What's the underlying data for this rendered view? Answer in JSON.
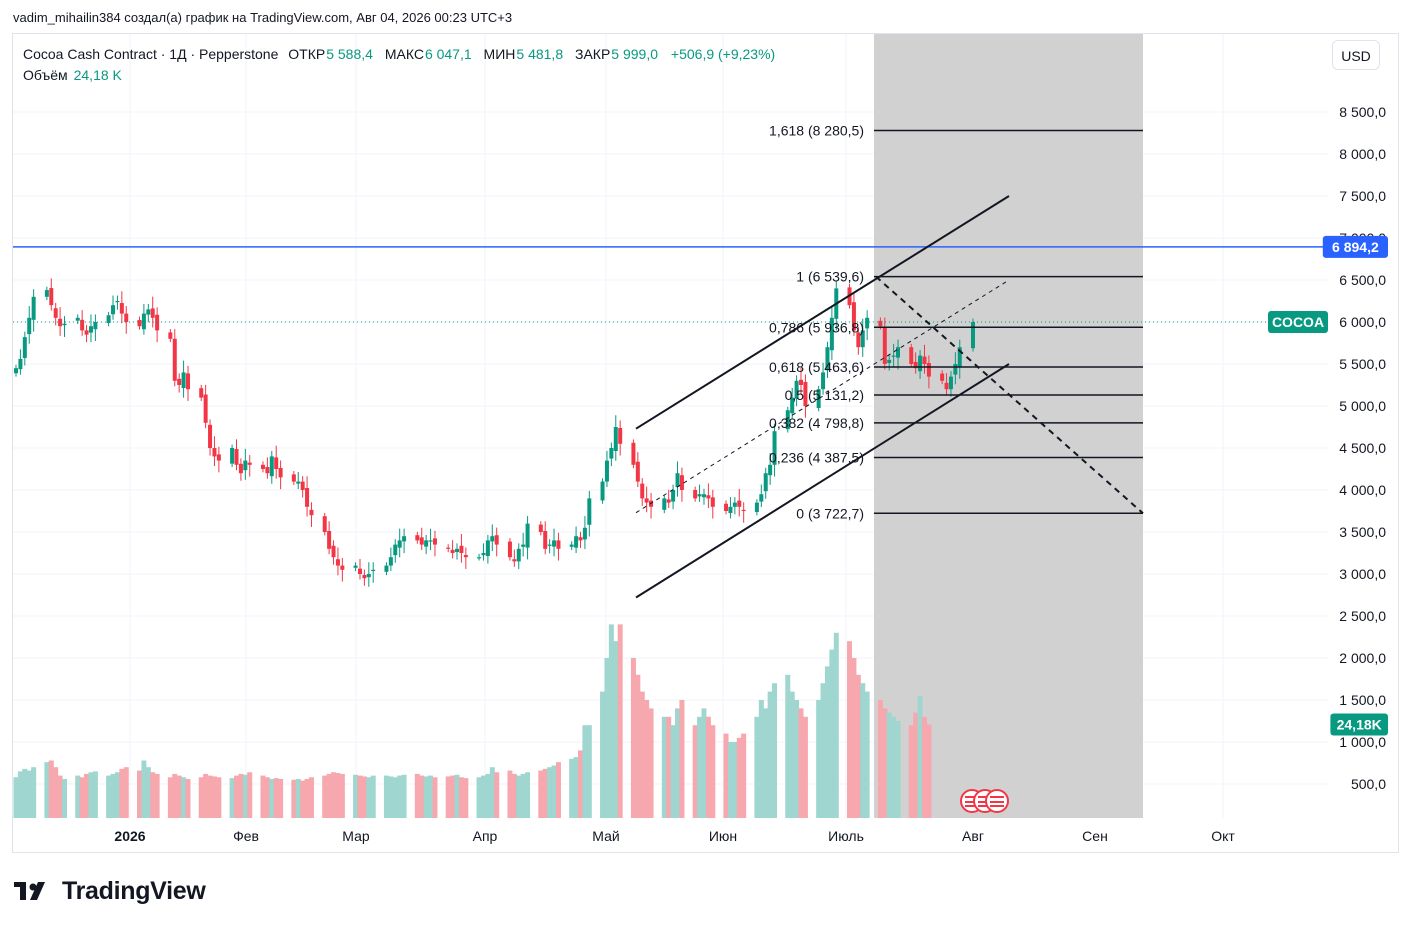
{
  "header": {
    "attribution": "vadim_mihailin384 создал(а) график на TradingView.com, Авг 04, 2026 00:23 UTC+3"
  },
  "legend": {
    "title": "Cocoa Cash Contract · 1Д · Pepperstone",
    "open_label": "ОТКР",
    "open": "5 588,4",
    "high_label": "МАКС",
    "high": "6 047,1",
    "low_label": "МИН",
    "low": "5 481,8",
    "close_label": "ЗАКР",
    "close": "5 999,0",
    "change": "+506,9 (+9,23%)",
    "volume_label": "Объём",
    "volume": "24,18 K"
  },
  "currency_button": "USD",
  "branding": "TradingView",
  "colors": {
    "up": "#089981",
    "down": "#f23645",
    "up_volume": "#9fd6cf",
    "down_volume": "#f6a8ae",
    "hline": "#2962ff",
    "accent": "#2962ff"
  },
  "chart_data": {
    "type": "candlestick",
    "symbol": "COCOA",
    "price_axis": {
      "ticks": [
        "500,0",
        "1 000,0",
        "1 500,0",
        "2 000,0",
        "2 500,0",
        "3 000,0",
        "3 500,0",
        "4 000,0",
        "4 500,0",
        "5 000,0",
        "5 500,0",
        "6 000,0",
        "6 500,0",
        "7 000,0",
        "7 500,0",
        "8 000,0",
        "8 500,0"
      ],
      "ylim": [
        0,
        9000
      ]
    },
    "time_axis": {
      "labels": [
        "2026",
        "Фев",
        "Мар",
        "Апр",
        "Май",
        "Июн",
        "Июль",
        "Авг",
        "Сен",
        "Окт"
      ]
    },
    "last_price_label": "COCOA",
    "last_volume_label": "24,18K",
    "horizontal_line": {
      "price": 6894.2,
      "label": "6 894,2"
    },
    "fibonacci": [
      {
        "level": "0",
        "price": 3722.7,
        "label": "0 (3 722,7)"
      },
      {
        "level": "0.236",
        "price": 4387.5,
        "label": "0,236 (4 387,5)"
      },
      {
        "level": "0.382",
        "price": 4798.8,
        "label": "0,382 (4 798,8)"
      },
      {
        "level": "0.5",
        "price": 5131.2,
        "label": "0,5 (5 131,2)"
      },
      {
        "level": "0.618",
        "price": 5463.6,
        "label": "0,618 (5 463,6)"
      },
      {
        "level": "0.786",
        "price": 5936.8,
        "label": "0,786 (5 936,8)"
      },
      {
        "level": "1",
        "price": 6539.6,
        "label": "1 (6 539,6)"
      },
      {
        "level": "1.618",
        "price": 8280.5,
        "label": "1,618 (8 280,5)"
      }
    ],
    "close_path": [
      5450,
      5560,
      5820,
      6050,
      6300,
      6380,
      6200,
      6050,
      5950,
      5980,
      6050,
      5900,
      5850,
      5950,
      6000,
      6080,
      6200,
      6250,
      6100,
      6000,
      5950,
      6100,
      6150,
      6050,
      5900,
      5800,
      5300,
      5250,
      5400,
      5200,
      5100,
      4800,
      4500,
      4400,
      4350,
      4500,
      4300,
      4200,
      4350,
      4300,
      4250,
      4200,
      4400,
      4250,
      4150,
      4100,
      4100,
      4000,
      3800,
      3700,
      3500,
      3300,
      3200,
      3100,
      3050,
      3100,
      3000,
      2950,
      3000,
      3050,
      3100,
      3200,
      3350,
      3400,
      3450,
      3400,
      3350,
      3400,
      3400,
      3350,
      3300,
      3250,
      3300,
      3250,
      3200,
      3200,
      3250,
      3400,
      3450,
      3350,
      3200,
      3150,
      3300,
      3350,
      3600,
      3500,
      3300,
      3350,
      3400,
      3300,
      3350,
      3450,
      3400,
      3550,
      3900,
      4100,
      4350,
      4500,
      4750,
      4550,
      4300,
      4100,
      3900,
      3850,
      3800,
      3900,
      3850,
      4000,
      4200,
      4000,
      3900,
      3950,
      3950,
      3900,
      3800,
      3750,
      3800,
      3850,
      3800,
      3750,
      3850,
      3950,
      4200,
      4300,
      4700,
      4950,
      5100,
      5300,
      5250,
      5000,
      5200,
      5400,
      5700,
      6050,
      6400,
      6200,
      5900,
      5700,
      5900,
      6050,
      5950,
      5500,
      5550,
      5600,
      5700,
      5500,
      5450,
      5600,
      5500,
      5350,
      5300,
      5200,
      5350,
      5500,
      5700,
      6000
    ],
    "volume_path": [
      580,
      650,
      680,
      660,
      700,
      760,
      780,
      700,
      600,
      560,
      600,
      580,
      620,
      640,
      650,
      600,
      620,
      640,
      680,
      700,
      660,
      780,
      700,
      640,
      620,
      580,
      620,
      600,
      580,
      560,
      580,
      620,
      600,
      590,
      580,
      570,
      600,
      620,
      610,
      640,
      600,
      580,
      560,
      570,
      560,
      550,
      560,
      540,
      560,
      580,
      600,
      620,
      640,
      630,
      620,
      610,
      600,
      590,
      580,
      600,
      600,
      590,
      580,
      600,
      610,
      620,
      600,
      590,
      600,
      580,
      590,
      600,
      610,
      580,
      570,
      580,
      600,
      620,
      700,
      640,
      660,
      620,
      600,
      620,
      640,
      660,
      680,
      700,
      720,
      760,
      800,
      820,
      900,
      1200,
      1200,
      1600,
      2000,
      2400,
      2200,
      2400,
      2000,
      1800,
      1600,
      1500,
      1400,
      1300,
      1300,
      1200,
      1400,
      1500,
      1200,
      1300,
      1400,
      1300,
      1200,
      1100,
      1000,
      1000,
      1050,
      1100,
      1300,
      1500,
      1400,
      1600,
      1700,
      1800,
      1600,
      1500,
      1400,
      1300,
      1500,
      1700,
      1900,
      2100,
      2300,
      2200,
      2000,
      1800,
      1700,
      1600,
      1500,
      1400,
      1350,
      1300,
      1250,
      1200,
      1350,
      1550,
      1300,
      1209
    ]
  }
}
